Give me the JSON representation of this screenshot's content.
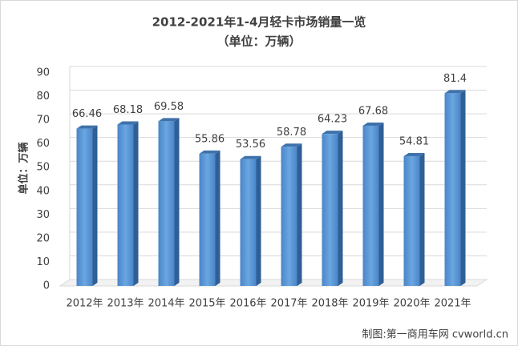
{
  "chart_data": {
    "type": "bar3d",
    "title": "2012-2021年1-4月轻卡市场销量一览",
    "subtitle": "（单位：万辆）",
    "y_label": "单位：万辆",
    "source": "制图:第一商用车网 cvworld.cn",
    "categories": [
      "2012年",
      "2013年",
      "2014年",
      "2015年",
      "2016年",
      "2017年",
      "2018年",
      "2019年",
      "2020年",
      "2021年"
    ],
    "values": [
      66.46,
      68.18,
      69.58,
      55.86,
      53.56,
      58.78,
      64.23,
      67.68,
      54.81,
      81.4
    ],
    "color": "#5b9bd5",
    "ylim": [
      0,
      90
    ],
    "yticks": [
      0,
      10,
      20,
      30,
      40,
      50,
      60,
      70,
      80,
      90
    ],
    "grid": true
  }
}
